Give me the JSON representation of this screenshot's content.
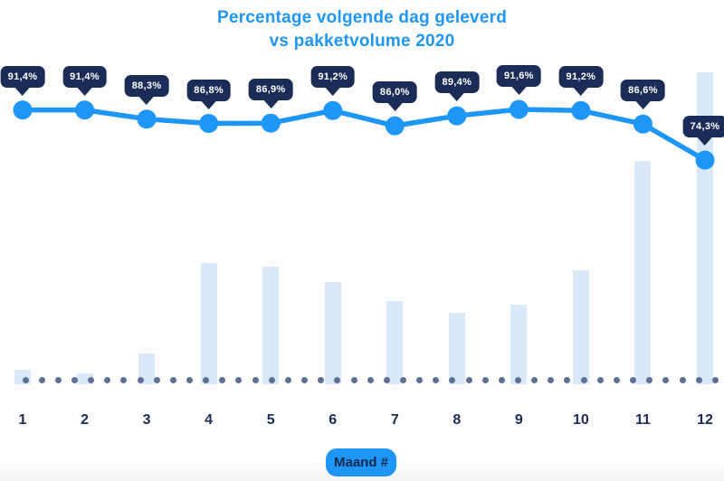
{
  "title": {
    "line1": "Percentage volgende dag geleverd",
    "line2": "vs pakketvolume 2020"
  },
  "xaxis": {
    "label_badge": "Maand #",
    "tick_labels": [
      "1",
      "2",
      "3",
      "4",
      "5",
      "6",
      "7",
      "8",
      "9",
      "10",
      "11",
      "12"
    ]
  },
  "chart_data": {
    "type": "line+bar combo",
    "title": "Percentage volgende dag geleverd vs pakketvolume 2020",
    "xlabel": "Maand #",
    "categories": [
      1,
      2,
      3,
      4,
      5,
      6,
      7,
      8,
      9,
      10,
      11,
      12
    ],
    "series": [
      {
        "name": "Percentage volgende dag geleverd",
        "type": "line",
        "unit": "%",
        "values": [
          91.4,
          91.4,
          88.3,
          86.8,
          86.9,
          91.2,
          86.0,
          89.4,
          91.6,
          91.2,
          86.6,
          74.3
        ],
        "data_labels": [
          "91,4%",
          "91,4%",
          "88,3%",
          "86,8%",
          "86,9%",
          "91,2%",
          "86,0%",
          "89,4%",
          "91,6%",
          "91,2%",
          "86,6%",
          "74,3%"
        ],
        "color": "#1e96f8"
      },
      {
        "name": "Pakketvolume 2020",
        "type": "bar",
        "unit": "relative (% of max month, no numeric axis shown)",
        "values": [
          4.6,
          3.5,
          9.9,
          38.8,
          37.7,
          32.8,
          26.7,
          22.9,
          25.5,
          36.5,
          71.6,
          100
        ],
        "color": "#d9e9f8"
      }
    ],
    "legend": "none",
    "grid": "single dotted horizontal baseline",
    "baseline_dot_color": "#5e7195"
  },
  "colors": {
    "accent_blue": "#1e96f8",
    "title_blue": "#2196f3",
    "tooltip_navy": "#1b2d57",
    "bar_light_blue": "#d9e9f8",
    "dot_slate": "#5e7195",
    "background": "#fdfdfd"
  }
}
